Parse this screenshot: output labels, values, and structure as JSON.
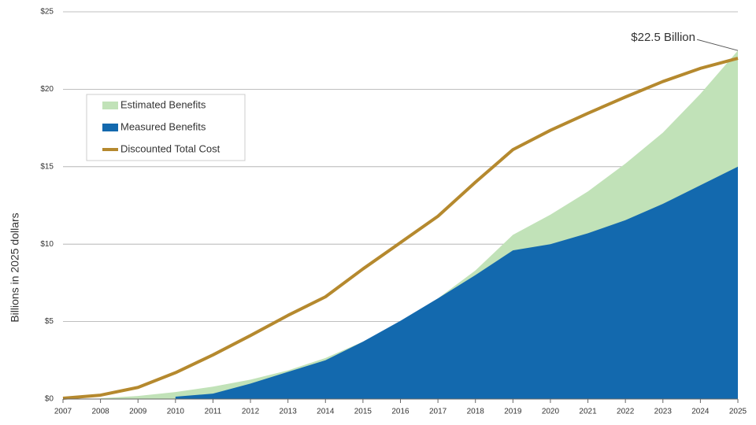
{
  "chart_data": {
    "type": "area",
    "y_label": "Billions in 2025 dollars",
    "x": [
      2007,
      2008,
      2009,
      2010,
      2011,
      2012,
      2013,
      2014,
      2015,
      2016,
      2017,
      2018,
      2019,
      2020,
      2021,
      2022,
      2023,
      2024,
      2025
    ],
    "xlim": [
      2007,
      2025
    ],
    "xticks": [
      2007,
      2008,
      2009,
      2010,
      2011,
      2012,
      2013,
      2014,
      2015,
      2016,
      2017,
      2018,
      2019,
      2020,
      2021,
      2022,
      2023,
      2024,
      2025
    ],
    "ylim": [
      0,
      25
    ],
    "yticks": [
      {
        "value": 0,
        "label": "$0"
      },
      {
        "value": 5,
        "label": "$5"
      },
      {
        "value": 10,
        "label": "$10"
      },
      {
        "value": 15,
        "label": "$15"
      },
      {
        "value": 20,
        "label": "$20"
      },
      {
        "value": 25,
        "label": "$25"
      }
    ],
    "grid": true,
    "legend": "upper-left",
    "series": [
      {
        "name": "Estimated Benefits",
        "type": "area",
        "color": "#c1e2b8",
        "values": [
          null,
          0.05,
          0.2,
          0.45,
          0.8,
          1.25,
          1.85,
          2.65,
          3.7,
          5.0,
          6.5,
          8.3,
          10.6,
          11.9,
          13.4,
          15.2,
          17.2,
          19.7,
          22.5
        ]
      },
      {
        "name": "Measured Benefits",
        "type": "area",
        "color": "#1369ae",
        "values": [
          null,
          null,
          null,
          0.15,
          0.35,
          1.0,
          1.75,
          2.5,
          3.7,
          5.05,
          6.5,
          8.0,
          9.6,
          10.0,
          10.7,
          11.55,
          12.6,
          13.8,
          15.0
        ]
      },
      {
        "name": "Discounted Total Cost",
        "type": "line",
        "color": "#b5892e",
        "values": [
          0.05,
          0.25,
          0.75,
          1.7,
          2.85,
          4.1,
          5.4,
          6.6,
          8.4,
          10.1,
          11.8,
          14.0,
          16.1,
          17.35,
          18.45,
          19.5,
          20.5,
          21.35,
          22.0
        ]
      }
    ],
    "annotations": [
      {
        "text": "$22.5 Billion",
        "x": 2025,
        "y": 22.5
      }
    ]
  }
}
